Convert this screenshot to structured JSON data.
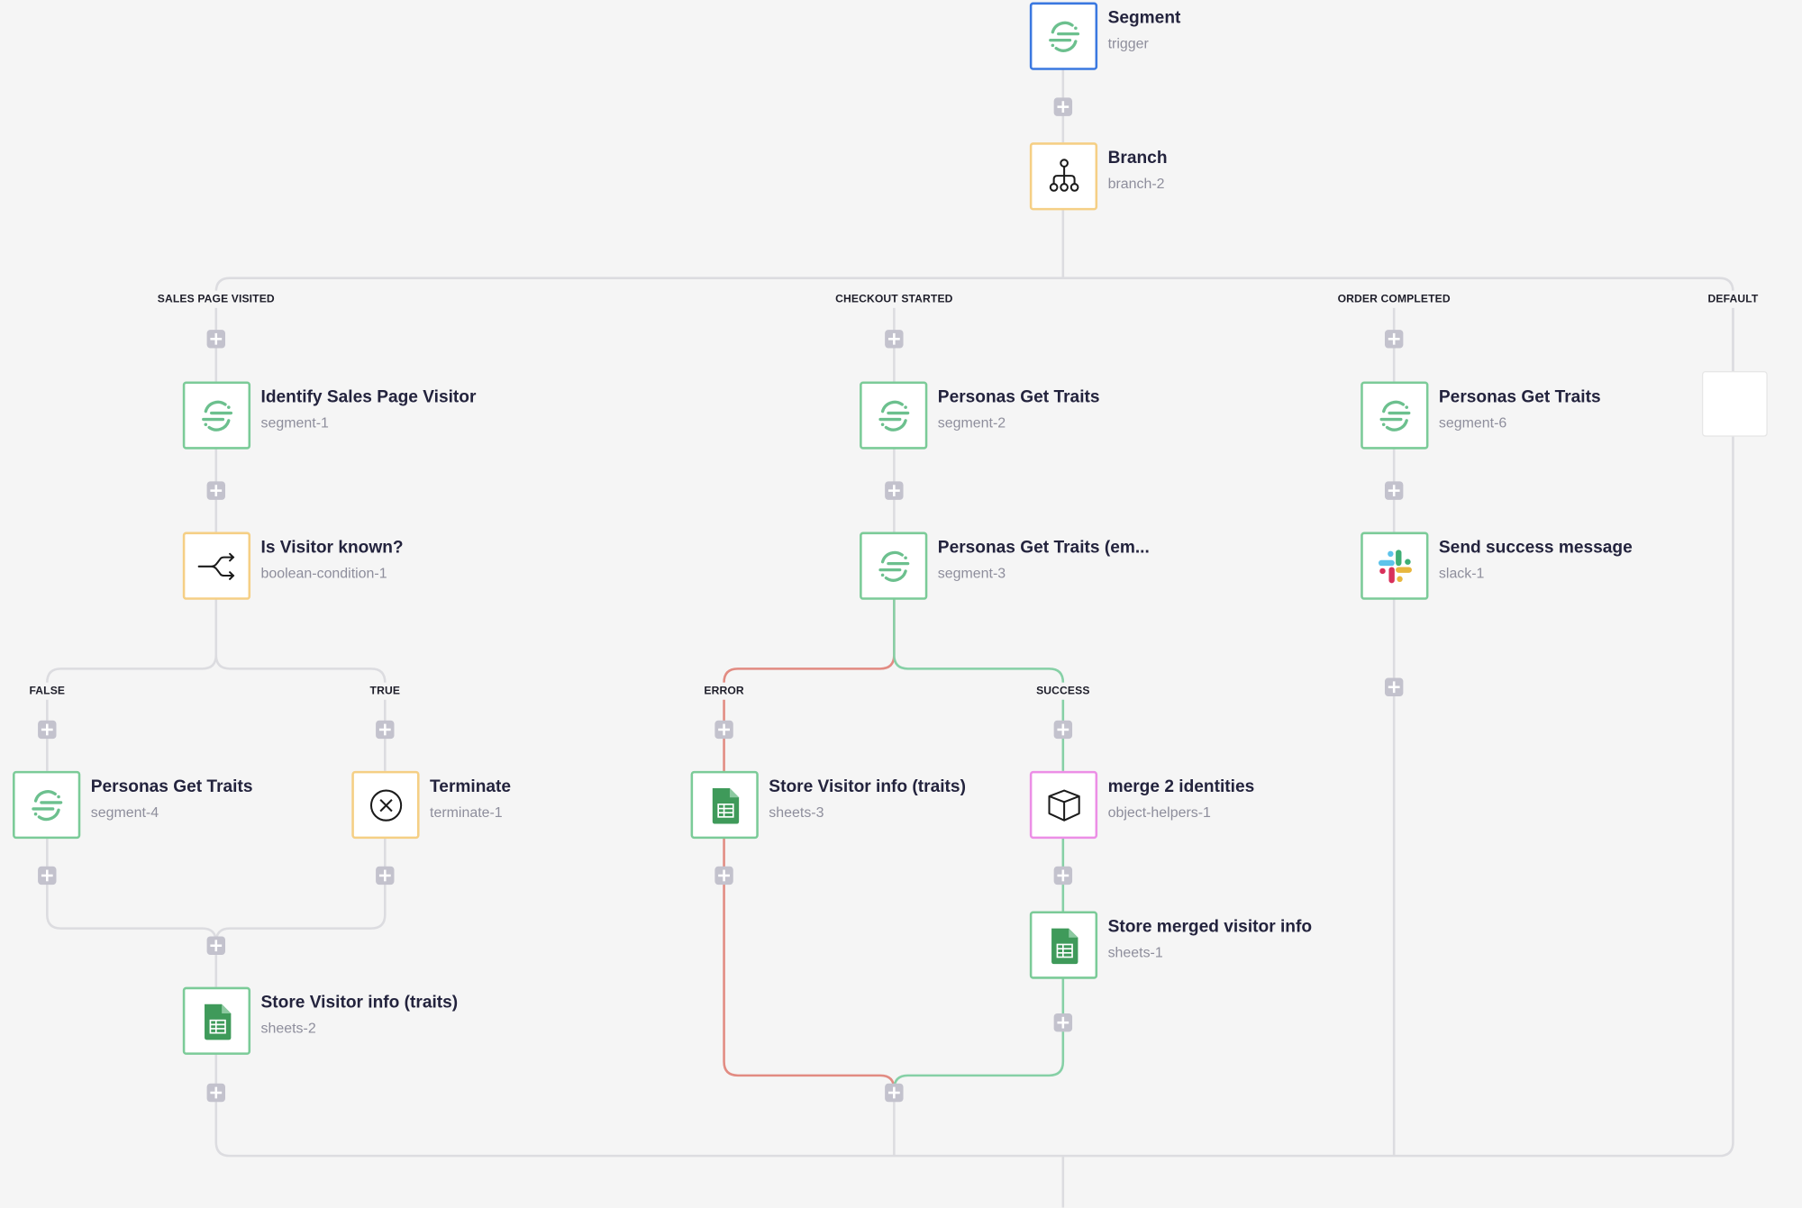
{
  "colors": {
    "trigger": "#3a78e0",
    "logic": "#f5cf85",
    "action": "#7bcb98",
    "helper": "#ec8ee6",
    "error_path": "#e28b82",
    "success_path": "#86d0a6",
    "wire": "#dcdce0",
    "add_button": "#c3c2cd"
  },
  "nodes": [
    {
      "title": "Segment",
      "subtitle": "trigger",
      "icon": "segment-icon"
    },
    {
      "title": "Branch",
      "subtitle": "branch-2",
      "icon": "branch-icon"
    },
    {
      "title": "Identify Sales Page Visitor",
      "subtitle": "segment-1",
      "icon": "segment-icon"
    },
    {
      "title": "Personas Get Traits",
      "subtitle": "segment-2",
      "icon": "segment-icon"
    },
    {
      "title": "Personas Get Traits",
      "subtitle": "segment-6",
      "icon": "segment-icon"
    },
    {
      "title": "Is Visitor known?",
      "subtitle": "boolean-condition-1",
      "icon": "split-arrows-icon"
    },
    {
      "title": "Personas Get Traits (em...",
      "subtitle": "segment-3",
      "icon": "segment-icon"
    },
    {
      "title": "Send success message",
      "subtitle": "slack-1",
      "icon": "slack-icon"
    },
    {
      "title": "Personas Get Traits",
      "subtitle": "segment-4",
      "icon": "segment-icon"
    },
    {
      "title": "Terminate",
      "subtitle": "terminate-1",
      "icon": "circle-x-icon"
    },
    {
      "title": "Store Visitor info (traits)",
      "subtitle": "sheets-3",
      "icon": "google-sheets-icon"
    },
    {
      "title": "merge 2 identities",
      "subtitle": "object-helpers-1",
      "icon": "cube-icon"
    },
    {
      "title": "Store merged visitor info",
      "subtitle": "sheets-1",
      "icon": "google-sheets-icon"
    },
    {
      "title": "Store Visitor info (traits)",
      "subtitle": "sheets-2",
      "icon": "google-sheets-icon"
    }
  ],
  "branch_labels": [
    "SALES PAGE VISITED",
    "CHECKOUT STARTED",
    "ORDER COMPLETED",
    "DEFAULT"
  ],
  "condition_labels": [
    "FALSE",
    "TRUE"
  ],
  "result_labels": [
    "ERROR",
    "SUCCESS"
  ]
}
